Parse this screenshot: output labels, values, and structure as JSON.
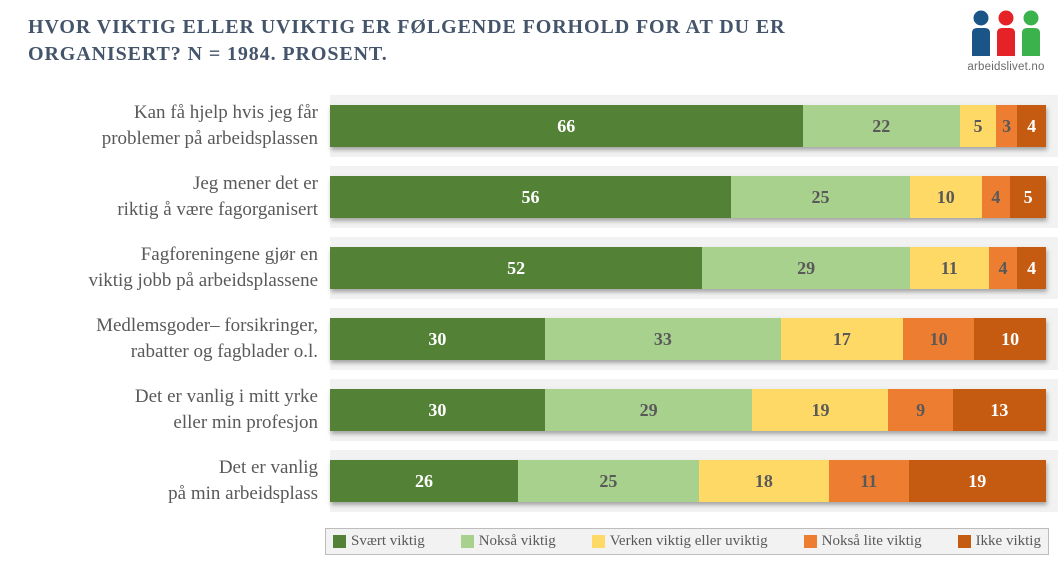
{
  "title": {
    "line1": "HVOR VIKTIG ELLER UVIKTIG ER FØLGENDE FORHOLD FOR AT DU ER",
    "line2": "ORGANISERT? N = 1984. PROSENT."
  },
  "logo": {
    "text": "arbeidslivet.no",
    "person_colors": [
      "#1B5486",
      "#E52227",
      "#3CB24C"
    ]
  },
  "colors": {
    "title_text": "#44546A",
    "label_text": "#595959",
    "band_background": "#f2f2f2",
    "legend_border": "#bdbdbd"
  },
  "chart_data": {
    "type": "bar",
    "orientation": "horizontal",
    "stacked": true,
    "unit": "percent",
    "title": "HVOR VIKTIG ELLER UVIKTIG ER FØLGENDE FORHOLD FOR AT DU ER ORGANISERT? N = 1984. PROSENT.",
    "legend_position": "bottom",
    "grid": false,
    "xlim": [
      0,
      100
    ],
    "categories": [
      "Kan få hjelp hvis jeg får problemer på arbeidsplassen",
      "Jeg mener det er riktig å være fagorganisert",
      "Fagforeningene gjør en viktig jobb på arbeidsplassene",
      "Medlemsgoder– forsikringer, rabatter og fagblader o.l.",
      "Det er vanlig i mitt yrke eller min profesjon",
      "Det er vanlig på min arbeidsplass"
    ],
    "category_lines": [
      [
        "Kan få hjelp hvis jeg får",
        "problemer på arbeidsplassen"
      ],
      [
        "Jeg mener det er",
        "riktig å være fagorganisert"
      ],
      [
        "Fagforeningene gjør en",
        "viktig jobb på arbeidsplassene"
      ],
      [
        "Medlemsgoder– forsikringer,",
        "rabatter og fagblader o.l."
      ],
      [
        "Det er vanlig i mitt yrke",
        "eller min profesjon"
      ],
      [
        "Det er vanlig",
        "på min arbeidsplass"
      ]
    ],
    "series": [
      {
        "name": "Svært viktig",
        "color": "#538135",
        "value_text_color": "#ffffff",
        "values": [
          66,
          56,
          52,
          30,
          30,
          26
        ]
      },
      {
        "name": "Nokså viktig",
        "color": "#A9D18E",
        "value_text_color": "#595959",
        "values": [
          22,
          25,
          29,
          33,
          29,
          25
        ]
      },
      {
        "name": "Verken viktig eller uviktig",
        "color": "#FFD966",
        "value_text_color": "#595959",
        "values": [
          5,
          10,
          11,
          17,
          19,
          18
        ]
      },
      {
        "name": "Nokså lite viktig",
        "color": "#ED7D31",
        "value_text_color": "#595959",
        "values": [
          3,
          4,
          4,
          10,
          9,
          11
        ]
      },
      {
        "name": "Ikke viktig",
        "color": "#C55A11",
        "value_text_color": "#ffffff",
        "values": [
          4,
          5,
          4,
          10,
          13,
          19
        ]
      }
    ]
  }
}
